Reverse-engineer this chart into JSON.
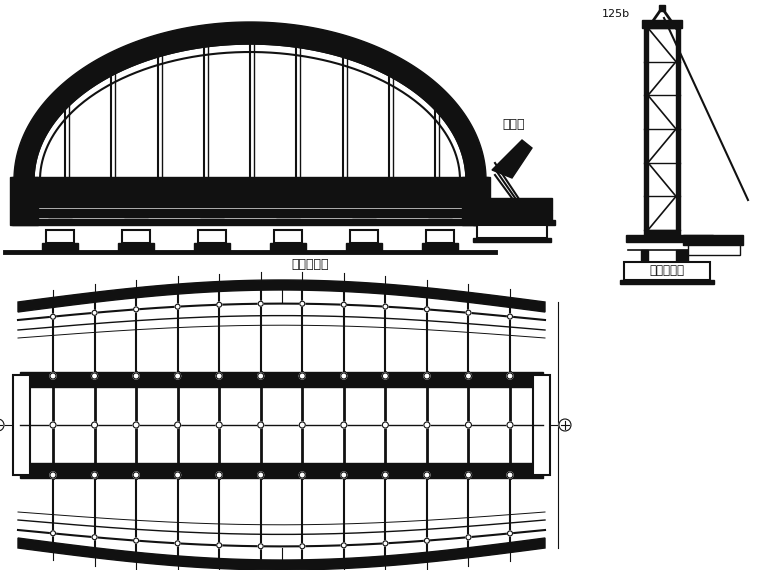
{
  "bg_color": "#ffffff",
  "lc": "#111111",
  "label_main_foundation": "混凝土基础",
  "label_side_foundation": "混凝土基础",
  "label_125b": "125b",
  "label_jiandao": "剪刀撑"
}
